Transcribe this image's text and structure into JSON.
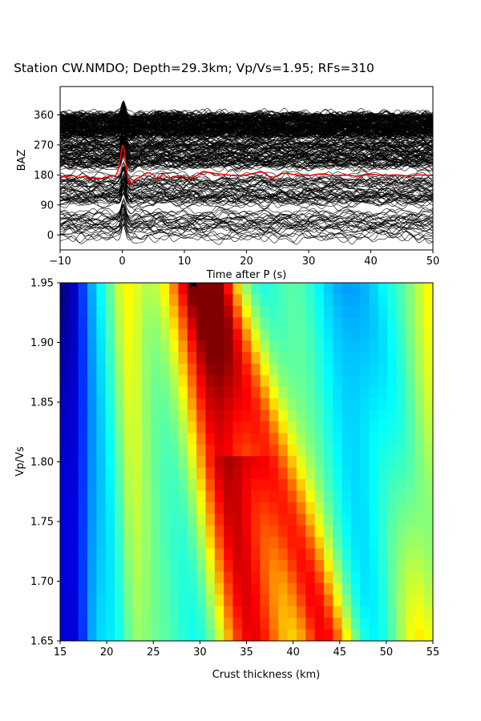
{
  "chart_data": [
    {
      "type": "line",
      "title": "Station CW.NMDO; Depth=29.3km; Vp/Vs=1.95; RFs=310",
      "xlabel": "Time after P (s)",
      "ylabel": "BAZ",
      "xlim": [
        -10,
        50
      ],
      "ylim": [
        -45,
        445
      ],
      "xticks": [
        "−10",
        "0",
        "10",
        "20",
        "30",
        "40",
        "50"
      ],
      "yticks": [
        "0",
        "90",
        "180",
        "270",
        "360"
      ],
      "xtick_values": [
        -10,
        0,
        10,
        20,
        30,
        40,
        50
      ],
      "ytick_values": [
        0,
        90,
        180,
        270,
        360
      ],
      "trace_count": 310,
      "trace_color": "#000000",
      "stack_color": "#ff0000",
      "series": [
        {
          "x": [
            -10,
            -9,
            -8,
            -7,
            -6,
            -5,
            -4,
            -3,
            -2,
            -1,
            -0.5,
            0,
            0.3,
            0.7,
            1,
            1.5,
            2,
            3,
            4,
            5,
            5.5,
            6,
            6.5,
            7,
            8,
            9,
            10,
            11,
            12,
            13,
            14,
            16,
            18,
            20,
            22,
            23,
            24,
            25,
            26,
            28,
            30,
            32,
            34,
            36,
            38,
            40,
            42,
            44,
            46,
            48,
            50
          ],
          "y": [
            177,
            175,
            178,
            172,
            176,
            170,
            168,
            171,
            176,
            180,
            210,
            265,
            255,
            200,
            160,
            152,
            165,
            175,
            186,
            180,
            165,
            170,
            182,
            176,
            170,
            178,
            175,
            170,
            178,
            190,
            187,
            182,
            178,
            180,
            188,
            185,
            170,
            178,
            185,
            180,
            178,
            183,
            178,
            180,
            176,
            182,
            178,
            180,
            177,
            180,
            178
          ]
        }
      ]
    },
    {
      "type": "heatmap",
      "xlabel": "Crust thickness (km)",
      "ylabel": "Vp/Vs",
      "xlim": [
        15,
        55
      ],
      "ylim": [
        1.65,
        1.95
      ],
      "xticks": [
        "15",
        "20",
        "25",
        "30",
        "35",
        "40",
        "45",
        "50",
        "55"
      ],
      "yticks": [
        "1.65",
        "1.70",
        "1.75",
        "1.80",
        "1.85",
        "1.90",
        "1.95"
      ],
      "xtick_values": [
        15,
        20,
        25,
        30,
        35,
        40,
        45,
        50,
        55
      ],
      "ytick_values": [
        1.65,
        1.7,
        1.75,
        1.8,
        1.85,
        1.9,
        1.95
      ],
      "colormap": "jet",
      "grid": [
        41,
        31
      ],
      "best_fit": {
        "thickness": 29.3,
        "vpvs": 1.95
      }
    }
  ]
}
